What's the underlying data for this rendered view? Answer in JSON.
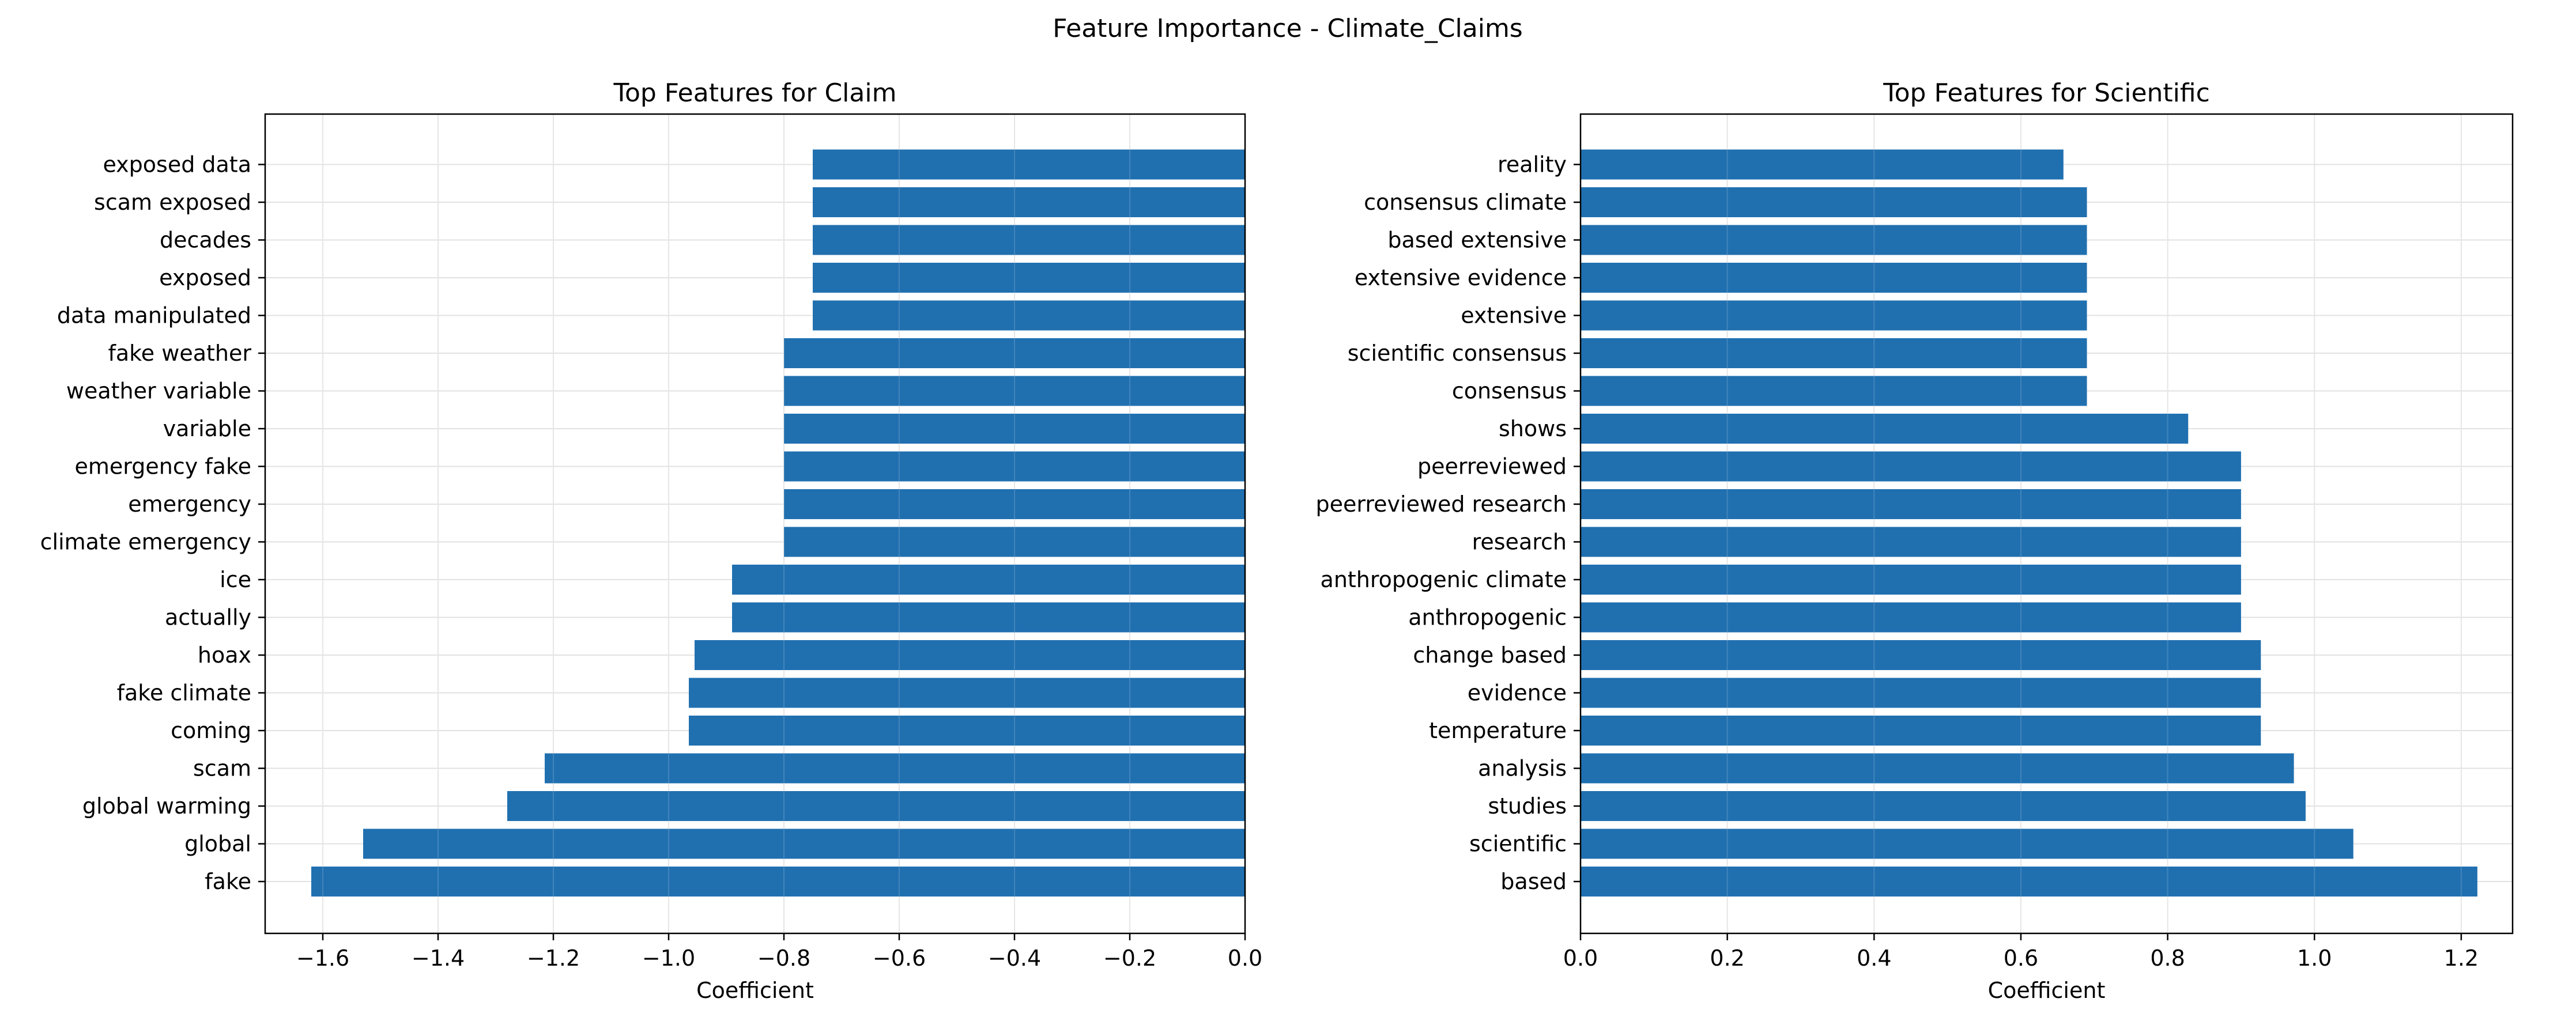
{
  "figure_title": "Feature Importance - Climate_Claims",
  "colors": {
    "bar": "#2070b0",
    "grid": "#e2e2e2"
  },
  "chart_data": [
    {
      "type": "bar",
      "orientation": "horizontal",
      "title": "Top Features for Claim",
      "xlabel": "Coefficient",
      "xlim": [
        -1.7,
        0.0
      ],
      "xticks": [
        -1.6,
        -1.4,
        -1.2,
        -1.0,
        -0.8,
        -0.6,
        -0.4,
        -0.2,
        0.0
      ],
      "xtick_labels": [
        "−1.6",
        "−1.4",
        "−1.2",
        "−1.0",
        "−0.8",
        "−0.6",
        "−0.4",
        "−0.2",
        "0.0"
      ],
      "grid": true,
      "categories": [
        "fake",
        "global",
        "global warming",
        "scam",
        "coming",
        "fake climate",
        "hoax",
        "actually",
        "ice",
        "climate emergency",
        "emergency",
        "emergency fake",
        "variable",
        "weather variable",
        "fake weather",
        "data manipulated",
        "exposed",
        "decades",
        "scam exposed",
        "exposed data"
      ],
      "values": [
        -1.62,
        -1.53,
        -1.28,
        -1.215,
        -0.965,
        -0.965,
        -0.955,
        -0.89,
        -0.89,
        -0.8,
        -0.8,
        -0.8,
        -0.8,
        -0.8,
        -0.8,
        -0.75,
        -0.75,
        -0.75,
        -0.75,
        -0.75
      ]
    },
    {
      "type": "bar",
      "orientation": "horizontal",
      "title": "Top Features for Scientific",
      "xlabel": "Coefficient",
      "xlim": [
        0.0,
        1.27
      ],
      "xticks": [
        0.0,
        0.2,
        0.4,
        0.6,
        0.8,
        1.0,
        1.2
      ],
      "xtick_labels": [
        "0.0",
        "0.2",
        "0.4",
        "0.6",
        "0.8",
        "1.0",
        "1.2"
      ],
      "grid": true,
      "categories": [
        "based",
        "scientific",
        "studies",
        "analysis",
        "temperature",
        "evidence",
        "change based",
        "anthropogenic",
        "anthropogenic climate",
        "research",
        "peerreviewed research",
        "peerreviewed",
        "shows",
        "consensus",
        "scientific consensus",
        "extensive",
        "extensive evidence",
        "based extensive",
        "consensus climate",
        "reality"
      ],
      "values": [
        1.222,
        1.053,
        0.988,
        0.972,
        0.927,
        0.927,
        0.927,
        0.9,
        0.9,
        0.9,
        0.9,
        0.9,
        0.828,
        0.69,
        0.69,
        0.69,
        0.69,
        0.69,
        0.69,
        0.658
      ]
    }
  ]
}
